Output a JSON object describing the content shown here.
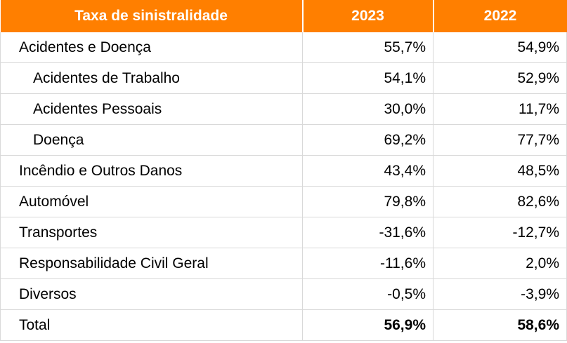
{
  "header": {
    "label": "Taxa de sinistralidade",
    "col_2023": "2023",
    "col_2022": "2022"
  },
  "rows": [
    {
      "label": "Acidentes e Doença",
      "v2023": "55,7%",
      "v2022": "54,9%"
    },
    {
      "label": "Acidentes de Trabalho",
      "v2023": "54,1%",
      "v2022": "52,9%"
    },
    {
      "label": "Acidentes Pessoais",
      "v2023": "30,0%",
      "v2022": "11,7%"
    },
    {
      "label": "Doença",
      "v2023": "69,2%",
      "v2022": "77,7%"
    },
    {
      "label": "Incêndio e Outros Danos",
      "v2023": "43,4%",
      "v2022": "48,5%"
    },
    {
      "label": "Automóvel",
      "v2023": "79,8%",
      "v2022": "82,6%"
    },
    {
      "label": "Transportes",
      "v2023": "-31,6%",
      "v2022": "-12,7%"
    },
    {
      "label": "Responsabilidade Civil Geral",
      "v2023": "-11,6%",
      "v2022": "2,0%"
    },
    {
      "label": "Diversos",
      "v2023": "-0,5%",
      "v2022": "-3,9%"
    },
    {
      "label": "Total",
      "v2023": "56,9%",
      "v2022": "58,6%"
    }
  ],
  "colors": {
    "header_bg": "#ff7f00",
    "header_text": "#ffffff",
    "grid": "#d9d9d9"
  }
}
